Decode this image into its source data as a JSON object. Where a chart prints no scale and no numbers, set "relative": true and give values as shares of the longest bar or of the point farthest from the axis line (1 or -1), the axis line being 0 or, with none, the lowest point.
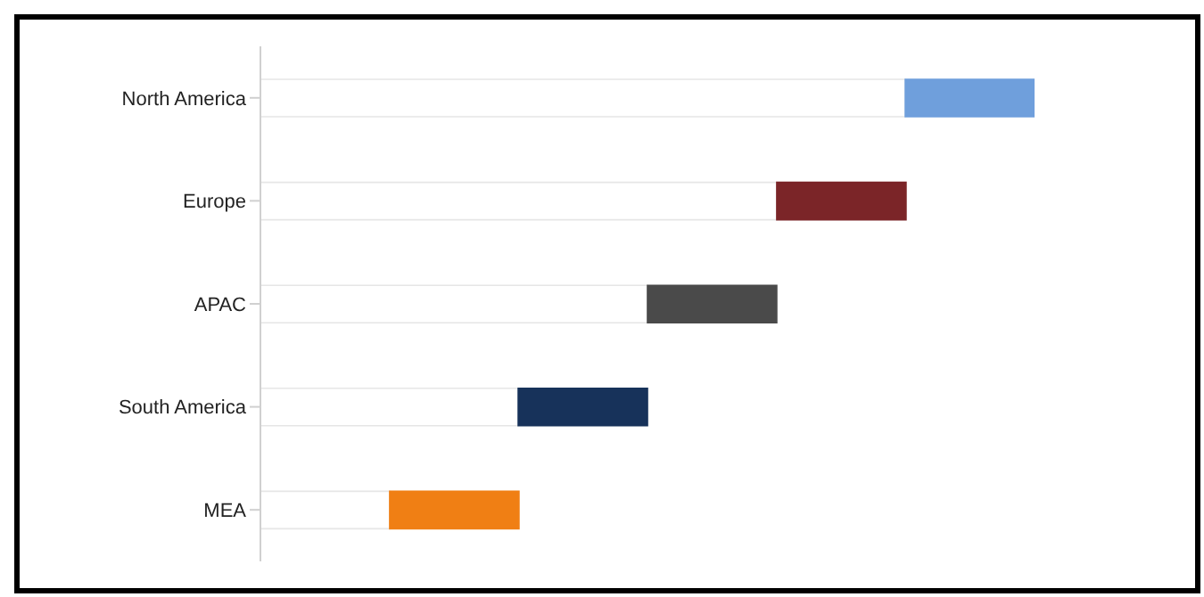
{
  "chart_data": {
    "type": "bar",
    "orientation": "horizontal",
    "relative": true,
    "stacked": true,
    "categories": [
      "North America",
      "Europe",
      "APAC",
      "South America",
      "MEA"
    ],
    "series": [
      {
        "color": "#ffffff",
        "values": [
          0.833,
          0.667,
          0.5,
          0.333,
          0.167
        ]
      },
      {
        "colors": [
          "#6f9fdc",
          "#7b2528",
          "#4a4a4a",
          "#17325a",
          "#f07f14"
        ],
        "values": [
          0.167,
          0.167,
          0.167,
          0.167,
          0.167
        ]
      }
    ]
  }
}
